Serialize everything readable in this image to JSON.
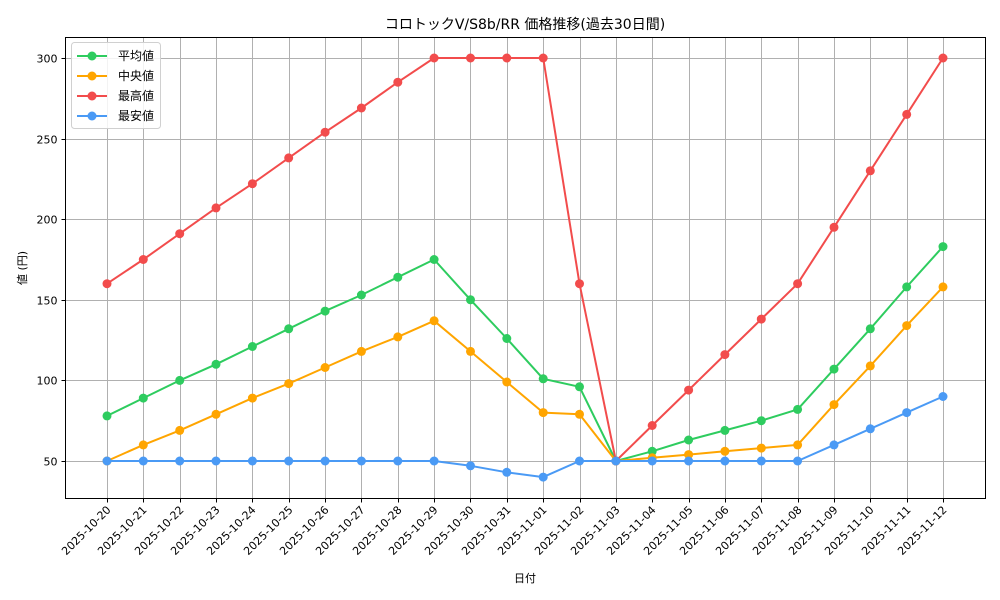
{
  "chart_data": {
    "type": "line",
    "title": "コロトックV/S8b/RR 価格推移(過去30日間)",
    "xlabel": "日付",
    "ylabel": "値 (円)",
    "ylim": [
      27,
      312
    ],
    "yticks": [
      50,
      100,
      150,
      200,
      250,
      300
    ],
    "grid": true,
    "legend_position": "upper left",
    "categories": [
      "2025-10-20",
      "2025-10-21",
      "2025-10-22",
      "2025-10-23",
      "2025-10-24",
      "2025-10-25",
      "2025-10-26",
      "2025-10-27",
      "2025-10-28",
      "2025-10-29",
      "2025-10-30",
      "2025-10-31",
      "2025-11-01",
      "2025-11-02",
      "2025-11-03",
      "2025-11-04",
      "2025-11-05",
      "2025-11-06",
      "2025-11-07",
      "2025-11-08",
      "2025-11-09",
      "2025-11-10",
      "2025-11-11",
      "2025-11-12"
    ],
    "series": [
      {
        "name": "平均値",
        "color": "#2ecc5f",
        "values": [
          78,
          89,
          100,
          110,
          121,
          132,
          143,
          153,
          164,
          175,
          150,
          126,
          101,
          96,
          50,
          56,
          63,
          69,
          75,
          82,
          107,
          132,
          158,
          183
        ]
      },
      {
        "name": "中央値",
        "color": "#ffa500",
        "values": [
          50,
          60,
          69,
          79,
          89,
          98,
          108,
          118,
          127,
          137,
          118,
          99,
          80,
          79,
          50,
          52,
          54,
          56,
          58,
          60,
          85,
          109,
          134,
          158
        ]
      },
      {
        "name": "最高値",
        "color": "#f24c4c",
        "values": [
          160,
          175,
          191,
          207,
          222,
          238,
          254,
          269,
          285,
          300,
          300,
          300,
          300,
          160,
          50,
          72,
          94,
          116,
          138,
          160,
          195,
          230,
          265,
          300
        ]
      },
      {
        "name": "最安値",
        "color": "#4a9af5",
        "values": [
          50,
          50,
          50,
          50,
          50,
          50,
          50,
          50,
          50,
          50,
          47,
          43,
          40,
          50,
          50,
          50,
          50,
          50,
          50,
          50,
          60,
          70,
          80,
          90
        ]
      }
    ]
  }
}
